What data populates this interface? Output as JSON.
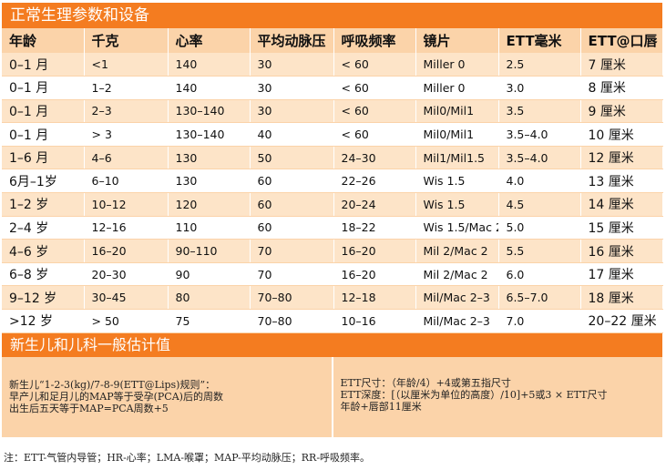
{
  "title": "正常生理参数和设备",
  "table": {
    "headers": [
      "年龄",
      "千克",
      "心率",
      "平均动脉压",
      "呼吸频率",
      "镜片",
      "ETT毫米",
      "ETT@口唇"
    ],
    "rows": [
      [
        "0–1 月",
        "<1",
        "140",
        "30",
        "< 60",
        "Miller 0",
        "2.5",
        "7 厘米"
      ],
      [
        "0–1 月",
        "1–2",
        "140",
        "30",
        "< 60",
        "Miller 0",
        "3.0",
        "8 厘米"
      ],
      [
        "0–1 月",
        "2–3",
        "130–140",
        "30",
        "< 60",
        "Mil0/Mil1",
        "3.5",
        "9 厘米"
      ],
      [
        "0–1 月",
        "> 3",
        "130–140",
        "40",
        "< 60",
        "Mil0/Mil1",
        "3.5–4.0",
        "10 厘米"
      ],
      [
        "1–6 月",
        "4–6",
        "130",
        "50",
        "24–30",
        "Mil1/Mil1.5",
        "3.5–4.0",
        "12 厘米"
      ],
      [
        "6月–1岁",
        "6–10",
        "130",
        "60",
        "22–26",
        "Wis 1.5",
        "4.0",
        "13 厘米"
      ],
      [
        "1–2 岁",
        "10–12",
        "120",
        "60",
        "20–24",
        "Wis 1.5",
        "4.5",
        "14 厘米"
      ],
      [
        "2–4 岁",
        "12–16",
        "110",
        "60",
        "18–22",
        "Wis 1.5/Mac 2",
        "5.0",
        "15 厘米"
      ],
      [
        "4–6 岁",
        "16–20",
        "90–110",
        "70",
        "16–20",
        "Mil 2/Mac 2",
        "5.5",
        "16 厘米"
      ],
      [
        "6–8 岁",
        "20–30",
        "90",
        "70",
        "16–20",
        "Mil 2/Mac 2",
        "6.0",
        "17 厘米"
      ],
      [
        "9–12 岁",
        "30–45",
        "80",
        "70–80",
        "12–18",
        "Mil/Mac 2–3",
        "6.5–7.0",
        "18 厘米"
      ],
      [
        ">12 岁",
        "> 50",
        "75",
        "70–80",
        "10–16",
        "Mil/Mac 2–3",
        "7.0",
        "20–22 厘米"
      ]
    ]
  },
  "estimates": {
    "title": "新生儿和儿科一般估计值",
    "left": [
      "新生儿“1-2-3(kg)/7-8-9(ETT@Lips)规则”：",
      "早产儿和足月儿的MAP等于受孕(PCA)后的周数",
      "出生后五天等于MAP=PCA周数+5"
    ],
    "right": [
      "ETT尺寸：（年龄/4）+4或第五指尺寸",
      "ETT深度：[（以厘米为单位的高度）/10]+5或3 × ETT尺寸",
      "年龄+唇部11厘米"
    ]
  },
  "footnote": "注：ETT-气管内导管；HR-心率；LMA-喉罩；MAP-平均动脉压；RR-呼吸频率。"
}
